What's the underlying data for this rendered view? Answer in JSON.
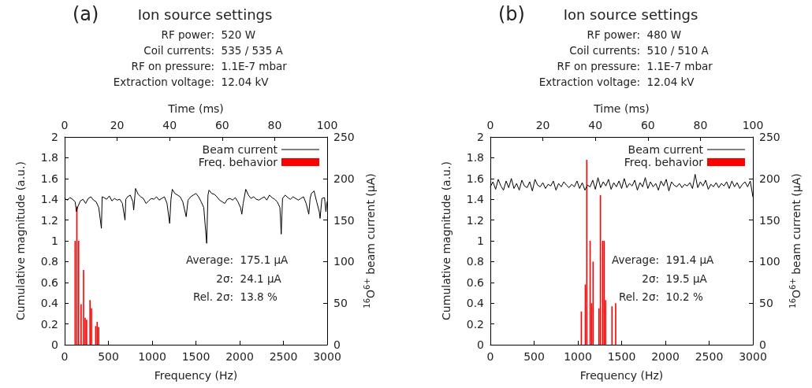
{
  "chart_data": [
    {
      "type": "bar",
      "title": "(a)",
      "subtitle": "Ion source settings",
      "xlabel": "Time (ms)",
      "x2label": "Frequency (Hz)",
      "ylabel": "Cumulative magnitude (a.u.)",
      "y2label": "$^{16}$O$^{6+}$ beam current (µA)",
      "annotations": [
        "RF power:  520 W",
        "Coil currents:  535 / 535 A",
        "RF on pressure:  1.1E-7 mbar",
        "Extraction voltage:  12.04 kV",
        "Average:  175.1 µA",
        "2σ:  24.1 µA",
        "Rel. 2σ:  13.8 %"
      ],
      "xlim": [
        0,
        100
      ],
      "xticks": [
        0,
        20,
        40,
        60,
        80,
        100
      ],
      "x2lim": [
        0,
        3000
      ],
      "x2ticks": [
        0,
        500,
        1000,
        1500,
        2000,
        2500,
        3000
      ],
      "ylim": [
        0,
        2
      ],
      "yticks": [
        0,
        0.2,
        0.4,
        0.6,
        0.8,
        1,
        1.2,
        1.4,
        1.6,
        1.8,
        2
      ],
      "y2lim": [
        0,
        250
      ],
      "y2ticks": [
        0,
        50,
        100,
        150,
        200,
        250
      ],
      "grid": false,
      "legend": "top right",
      "marker": "none",
      "line_style": "solid",
      "series": [
        {
          "name": "Beam current",
          "type": "line",
          "axis": "y2",
          "color": "#000000",
          "x": [
            0,
            1,
            2,
            3,
            4,
            4.5,
            5,
            6,
            7,
            8,
            9,
            10,
            11,
            12,
            13,
            14,
            14.3,
            15,
            16,
            17,
            18,
            19,
            20,
            21,
            22,
            23,
            23.3,
            24,
            25,
            26,
            26.3,
            27,
            28,
            29,
            30,
            31,
            32,
            33,
            34,
            35,
            36,
            37,
            38,
            39,
            40,
            40.5,
            41,
            42,
            43,
            44,
            45,
            46.3,
            47,
            48,
            49,
            50,
            51,
            52,
            53,
            54.1,
            54.6,
            55,
            56,
            57,
            58,
            59,
            60,
            61,
            62,
            63,
            64,
            65,
            66,
            67,
            67.5,
            68,
            69,
            70,
            71,
            72,
            73,
            74,
            75,
            76,
            77,
            78,
            79,
            80,
            81,
            82,
            82.5,
            83,
            84,
            85,
            86,
            87,
            88,
            89,
            90,
            91,
            92,
            93,
            93.5,
            94,
            95,
            96,
            97,
            97.3,
            98,
            99,
            99.5,
            100
          ],
          "values": [
            176,
            174,
            177,
            175,
            172,
            160,
            166,
            173,
            175,
            170,
            176,
            178,
            174,
            172,
            165,
            140,
            178,
            177,
            175,
            179,
            173,
            176,
            174,
            175,
            170,
            150,
            175,
            178,
            180,
            172,
            162,
            188,
            181,
            178,
            176,
            170,
            173,
            176,
            175,
            178,
            174,
            176,
            178,
            170,
            146,
            175,
            187,
            182,
            180,
            178,
            172,
            154,
            174,
            178,
            180,
            182,
            178,
            172,
            165,
            122,
            180,
            186,
            182,
            181,
            178,
            174,
            172,
            170,
            175,
            176,
            174,
            177,
            172,
            165,
            157,
            170,
            187,
            180,
            176,
            178,
            175,
            174,
            176,
            178,
            174,
            180,
            177,
            175,
            172,
            165,
            133,
            176,
            180,
            177,
            175,
            178,
            176,
            174,
            176,
            178,
            170,
            157,
            176,
            182,
            185,
            172,
            160,
            152,
            176,
            177,
            160,
            172
          ]
        },
        {
          "name": "Freq. behavior",
          "axis": "x2",
          "color": "#ff0000",
          "x": [
            120,
            140,
            160,
            188,
            216,
            234,
            251,
            290,
            307,
            355,
            372,
            389
          ],
          "values": [
            1.0,
            1.33,
            1.0,
            0.39,
            0.72,
            0.26,
            0.24,
            0.43,
            0.35,
            0.18,
            0.22,
            0.17
          ]
        }
      ]
    },
    {
      "type": "bar",
      "title": "(b)",
      "subtitle": "Ion source settings",
      "xlabel": "Time (ms)",
      "x2label": "Frequency (Hz)",
      "ylabel": "Cumulative magnitude (a.u.)",
      "y2label": "$^{16}$O$^{6+}$ beam current (µA)",
      "annotations": [
        "RF power:  480 W",
        "Coil currents:  510 / 510 A",
        "RF on pressure:  1.1E-7 mbar",
        "Extraction voltage:  12.04 kV",
        "Average:  191.4 µA",
        "2σ:  19.5 µA",
        "Rel. 2σ:  10.2 %"
      ],
      "xlim": [
        0,
        100
      ],
      "xticks": [
        0,
        20,
        40,
        60,
        80,
        100
      ],
      "x2lim": [
        0,
        3000
      ],
      "x2ticks": [
        0,
        500,
        1000,
        1500,
        2000,
        2500,
        3000
      ],
      "ylim": [
        0,
        2
      ],
      "yticks": [
        0,
        0.2,
        0.4,
        0.6,
        0.8,
        1,
        1.2,
        1.4,
        1.6,
        1.8,
        2
      ],
      "y2lim": [
        0,
        250
      ],
      "y2ticks": [
        0,
        50,
        100,
        150,
        200,
        250
      ],
      "grid": false,
      "legend": "top right",
      "marker": "none",
      "line_style": "solid",
      "series": [
        {
          "name": "Beam current",
          "type": "line",
          "axis": "y2",
          "color": "#000000",
          "x": [
            0,
            1,
            2,
            3,
            4,
            5,
            6,
            7,
            8,
            9,
            10,
            11,
            12,
            13,
            14,
            15,
            16,
            17,
            18,
            19,
            20,
            21,
            22,
            23,
            24,
            25,
            26,
            27,
            28,
            29,
            30,
            31,
            32,
            33,
            34,
            35,
            36,
            37,
            38,
            39,
            40,
            41,
            42,
            43,
            44,
            45,
            46,
            47,
            48,
            49,
            50,
            51,
            52,
            53,
            54,
            55,
            56,
            57,
            58,
            59,
            60,
            61,
            62,
            63,
            64,
            65,
            66,
            67,
            68,
            69,
            70,
            71,
            72,
            73,
            74,
            75,
            76,
            77,
            78,
            79,
            80,
            81,
            82,
            83,
            84,
            85,
            86,
            87,
            88,
            89,
            90,
            91,
            92,
            93,
            94,
            95,
            96,
            97,
            98,
            99,
            100
          ],
          "values": [
            190,
            196,
            187,
            199,
            191,
            186,
            197,
            189,
            200,
            188,
            194,
            186,
            198,
            191,
            189,
            196,
            185,
            199,
            192,
            190,
            195,
            188,
            193,
            191,
            197,
            186,
            194,
            190,
            196,
            192,
            189,
            193,
            190,
            197,
            188,
            195,
            186,
            192,
            190,
            198,
            187,
            201,
            189,
            196,
            191,
            199,
            187,
            195,
            190,
            197,
            188,
            200,
            189,
            194,
            191,
            198,
            186,
            195,
            190,
            201,
            188,
            196,
            190,
            194,
            186,
            197,
            191,
            199,
            185,
            196,
            192,
            190,
            194,
            189,
            193,
            191,
            195,
            188,
            205,
            189,
            196,
            191,
            198,
            187,
            193,
            190,
            195,
            189,
            194,
            191,
            196,
            188,
            197,
            190,
            195,
            188,
            193,
            196,
            190,
            197,
            178
          ]
        },
        {
          "name": "Freq. behavior",
          "axis": "x2",
          "color": "#ff0000",
          "x": [
            1040,
            1085,
            1102,
            1140,
            1157,
            1174,
            1241,
            1258,
            1283,
            1300,
            1317,
            1390,
            1432
          ],
          "values": [
            0.32,
            0.58,
            1.78,
            1.0,
            0.4,
            0.8,
            0.35,
            1.44,
            1.0,
            1.0,
            0.43,
            0.37,
            0.4
          ]
        }
      ]
    }
  ]
}
